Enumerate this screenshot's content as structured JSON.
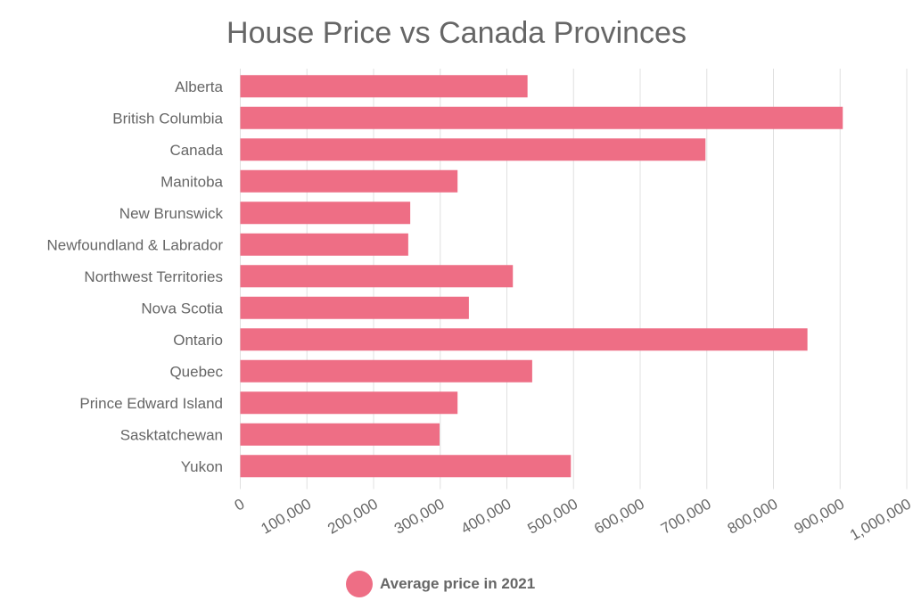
{
  "chart_data": {
    "type": "bar",
    "orientation": "horizontal",
    "title": "House Price vs Canada Provinces",
    "categories": [
      "Alberta",
      "British Columbia",
      "Canada",
      "Manitoba",
      "New Brunswick",
      "Newfoundland & Labrador",
      "Northwest Territories",
      "Nova Scotia",
      "Ontario",
      "Quebec",
      "Prince Edward Island",
      "Sasktatchewan",
      "Yukon"
    ],
    "series": [
      {
        "name": "Average price in 2021",
        "values": [
          431000,
          904000,
          698000,
          326000,
          255000,
          252000,
          409000,
          343000,
          851000,
          438000,
          326000,
          299000,
          496000
        ]
      }
    ],
    "xlim": [
      0,
      1000000
    ],
    "xticks": [
      "0",
      "100,000",
      "200,000",
      "300,000",
      "400,000",
      "500,000",
      "600,000",
      "700,000",
      "800,000",
      "900,000",
      "1,000,000"
    ],
    "grid": true,
    "legend_position": "bottom",
    "colors": {
      "bar": "#ee6e85",
      "text": "#666666",
      "grid": "#e0e0e0"
    }
  }
}
